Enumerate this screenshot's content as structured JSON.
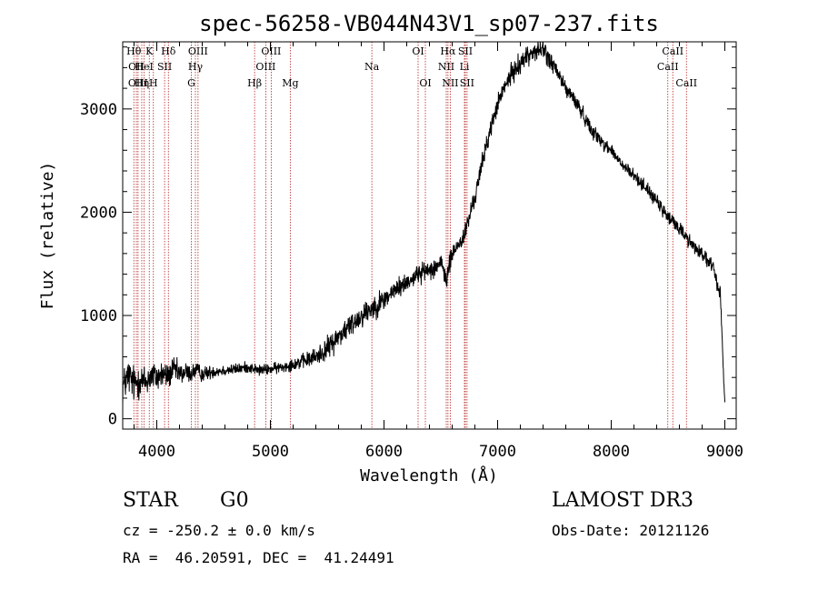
{
  "chart_data": {
    "type": "line",
    "title": "spec-56258-VB044N43V1_sp07-237.fits",
    "xlabel": "Wavelength (Å)",
    "ylabel": "Flux (relative)",
    "xlim": [
      3700,
      9100
    ],
    "ylim": [
      -100,
      3650
    ],
    "xticks": [
      4000,
      5000,
      6000,
      7000,
      8000,
      9000
    ],
    "yticks": [
      0,
      1000,
      2000,
      3000
    ],
    "grid": false,
    "series": [
      {
        "name": "spectrum",
        "x": [
          3700,
          3750,
          3800,
          3850,
          3900,
          3950,
          4000,
          4050,
          4100,
          4150,
          4200,
          4250,
          4300,
          4350,
          4400,
          4500,
          4600,
          4700,
          4800,
          4900,
          5000,
          5100,
          5200,
          5300,
          5400,
          5500,
          5600,
          5700,
          5800,
          5900,
          6000,
          6100,
          6200,
          6300,
          6400,
          6500,
          6550,
          6600,
          6700,
          6800,
          6900,
          7000,
          7100,
          7200,
          7300,
          7400,
          7500,
          7600,
          7700,
          7800,
          7900,
          8000,
          8100,
          8200,
          8300,
          8400,
          8500,
          8600,
          8700,
          8800,
          8900,
          8960,
          9000
        ],
        "y": [
          300,
          420,
          330,
          380,
          350,
          420,
          400,
          430,
          410,
          480,
          430,
          450,
          440,
          470,
          430,
          460,
          470,
          480,
          500,
          470,
          480,
          500,
          530,
          560,
          600,
          680,
          800,
          900,
          1000,
          1080,
          1150,
          1250,
          1320,
          1400,
          1450,
          1500,
          1350,
          1600,
          1750,
          2150,
          2650,
          3050,
          3300,
          3450,
          3550,
          3580,
          3400,
          3200,
          3050,
          2850,
          2700,
          2600,
          2450,
          2350,
          2250,
          2100,
          1950,
          1850,
          1700,
          1600,
          1450,
          1200,
          150
        ],
        "noise": [
          200,
          200,
          200,
          190,
          180,
          170,
          160,
          150,
          140,
          130,
          120,
          110,
          100,
          90,
          80,
          70,
          60,
          60,
          60,
          60,
          60,
          60,
          70,
          80,
          100,
          120,
          130,
          130,
          130,
          130,
          120,
          110,
          100,
          100,
          100,
          110,
          110,
          110,
          100,
          100,
          100,
          100,
          110,
          110,
          110,
          110,
          100,
          90,
          80,
          80,
          80,
          70,
          70,
          70,
          70,
          70,
          80,
          80,
          80,
          80,
          80,
          80,
          80
        ]
      }
    ],
    "lines": [
      {
        "x": 3798,
        "label": "Hθ",
        "row": 0
      },
      {
        "x": 3820,
        "label": "OII",
        "row": 1
      },
      {
        "x": 3835,
        "label": "OIII",
        "row": 2
      },
      {
        "x": 3868,
        "label": "Hη",
        "row": 2
      },
      {
        "x": 3889,
        "label": "HeI",
        "row": 1
      },
      {
        "x": 3934,
        "label": "K",
        "row": 0
      },
      {
        "x": 3970,
        "label": "H",
        "row": 2
      },
      {
        "x": 4069,
        "label": "SII",
        "row": 1
      },
      {
        "x": 4102,
        "label": "Hδ",
        "row": 0
      },
      {
        "x": 4304,
        "label": "G",
        "row": 2
      },
      {
        "x": 4340,
        "label": "Hγ",
        "row": 1
      },
      {
        "x": 4363,
        "label": "OIII",
        "row": 0
      },
      {
        "x": 4861,
        "label": "Hβ",
        "row": 2
      },
      {
        "x": 4959,
        "label": "OIII",
        "row": 1
      },
      {
        "x": 5007,
        "label": "OIII",
        "row": 0
      },
      {
        "x": 5175,
        "label": "Mg",
        "row": 2
      },
      {
        "x": 5893,
        "label": "Na",
        "row": 1
      },
      {
        "x": 6300,
        "label": "OI",
        "row": 0
      },
      {
        "x": 6364,
        "label": "OI",
        "row": 2
      },
      {
        "x": 6548,
        "label": "NII",
        "row": 1
      },
      {
        "x": 6563,
        "label": "Hα",
        "row": 0
      },
      {
        "x": 6583,
        "label": "NII",
        "row": 2
      },
      {
        "x": 6708,
        "label": "Li",
        "row": 1
      },
      {
        "x": 6716,
        "label": "SII",
        "row": 0
      },
      {
        "x": 6731,
        "label": "SII",
        "row": 2
      },
      {
        "x": 8498,
        "label": "CaII",
        "row": 1
      },
      {
        "x": 8542,
        "label": "CaII",
        "row": 0
      },
      {
        "x": 8662,
        "label": "CaII",
        "row": 2
      }
    ]
  },
  "info": {
    "class": "STAR",
    "subclass": "G0",
    "survey": "LAMOST DR3",
    "redshift": "cz = -250.2 ± 0.0 km/s",
    "obs_date": "Obs-Date: 20121126",
    "coords": "RA =  46.20591, DEC =  41.24491"
  },
  "colors": {
    "spectrum": "#000000",
    "line_marker": "#b22222",
    "axes": "#000000"
  }
}
